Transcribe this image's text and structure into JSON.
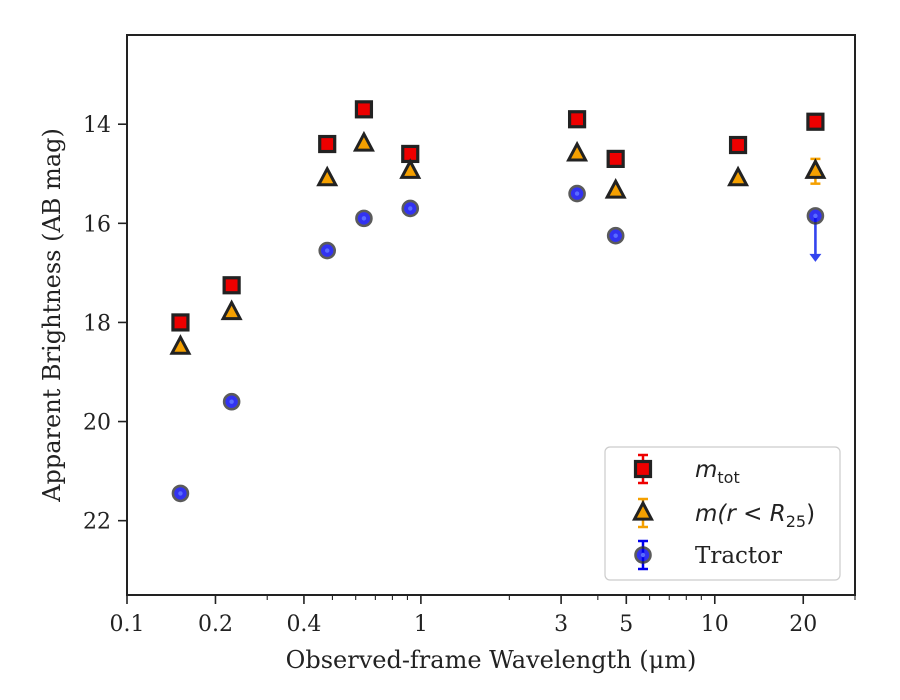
{
  "chart_data": {
    "type": "scatter",
    "title": "",
    "xlabel": "Observed-frame Wavelength (μm)",
    "ylabel": "Apparent Brightness (AB mag)",
    "x_scale": "log",
    "xlim": [
      0.1,
      30
    ],
    "ylim": [
      23.5,
      12.2
    ],
    "y_inverted": true,
    "x_tick_labels": [
      "0.1",
      "0.2",
      "0.4",
      "1",
      "3",
      "5",
      "10",
      "20"
    ],
    "y_tick_labels": [
      "14",
      "16",
      "18",
      "20",
      "22"
    ],
    "grid": false,
    "legend_position": "lower-right",
    "series": [
      {
        "name": "m_tot",
        "legend_main": "m",
        "legend_sub": "tot",
        "marker": "square",
        "color": "#ee0000",
        "edge": "#222222",
        "points": [
          {
            "x": 0.152,
            "y": 18.0
          },
          {
            "x": 0.227,
            "y": 17.25
          },
          {
            "x": 0.48,
            "y": 14.4
          },
          {
            "x": 0.64,
            "y": 13.7
          },
          {
            "x": 0.92,
            "y": 14.6
          },
          {
            "x": 3.4,
            "y": 13.9
          },
          {
            "x": 4.6,
            "y": 14.7
          },
          {
            "x": 12.0,
            "y": 14.42
          },
          {
            "x": 22.0,
            "y": 13.95
          }
        ]
      },
      {
        "name": "m(r < R25)",
        "legend_main": "m(r < R",
        "legend_sub": "25",
        "legend_close": ")",
        "marker": "triangle",
        "color": "#f5a000",
        "edge": "#222222",
        "points": [
          {
            "x": 0.152,
            "y": 18.5
          },
          {
            "x": 0.227,
            "y": 17.8
          },
          {
            "x": 0.48,
            "y": 15.1
          },
          {
            "x": 0.64,
            "y": 14.4
          },
          {
            "x": 0.92,
            "y": 14.95
          },
          {
            "x": 3.4,
            "y": 14.6
          },
          {
            "x": 4.6,
            "y": 15.35
          },
          {
            "x": 12.0,
            "y": 15.1
          },
          {
            "x": 22.0,
            "y": 14.95,
            "err": 0.25
          }
        ]
      },
      {
        "name": "Tractor",
        "legend_main": "Tractor",
        "marker": "circle",
        "color": "#0000ee",
        "edge": "#333333",
        "points": [
          {
            "x": 0.152,
            "y": 21.45
          },
          {
            "x": 0.227,
            "y": 19.6
          },
          {
            "x": 0.48,
            "y": 16.55
          },
          {
            "x": 0.64,
            "y": 15.9
          },
          {
            "x": 0.92,
            "y": 15.7
          },
          {
            "x": 3.4,
            "y": 15.4
          },
          {
            "x": 4.6,
            "y": 16.25
          },
          {
            "x": 22.0,
            "y": 15.85,
            "upper_limit": true
          }
        ]
      }
    ]
  }
}
